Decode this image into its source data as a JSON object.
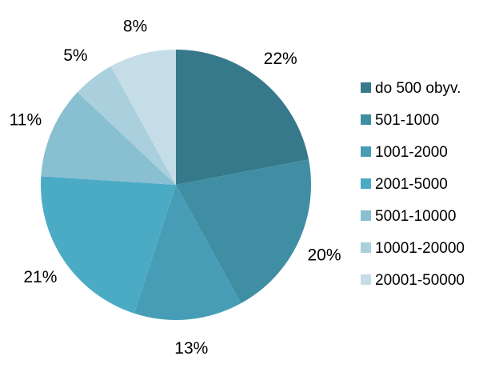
{
  "chart_data": {
    "type": "pie",
    "title": "",
    "categories": [
      "do 500 obyv.",
      "501-1000",
      "1001-2000",
      "2001-5000",
      "5001-10000",
      "10001-20000",
      "20001-50000"
    ],
    "values": [
      22,
      20,
      13,
      21,
      11,
      5,
      8
    ],
    "labels": [
      "22%",
      "20%",
      "13%",
      "21%",
      "11%",
      "5%",
      "8%"
    ],
    "colors": [
      "#36798a",
      "#3f8ea4",
      "#479db5",
      "#4babc5",
      "#88bfd1",
      "#a9d0dc",
      "#c5dde6"
    ],
    "legend_position": "right",
    "start_angle": "12 o'clock",
    "direction": "clockwise"
  }
}
